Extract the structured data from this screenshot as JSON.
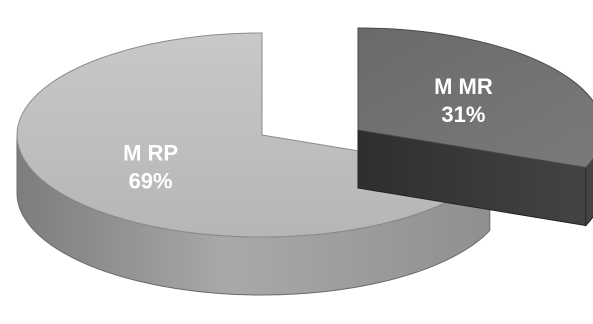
{
  "chart_data": {
    "type": "pie",
    "variant": "3d-exploded",
    "title": "",
    "slices": [
      {
        "name": "M RP",
        "value": 69,
        "label_pct": "69%",
        "color": "#bdbdbd",
        "side_color": "#8a8a8a"
      },
      {
        "name": "M MR",
        "value": 31,
        "label_pct": "31%",
        "color": "#6f6f6f",
        "side_color": "#3a3a3a"
      }
    ],
    "legend": "none"
  }
}
